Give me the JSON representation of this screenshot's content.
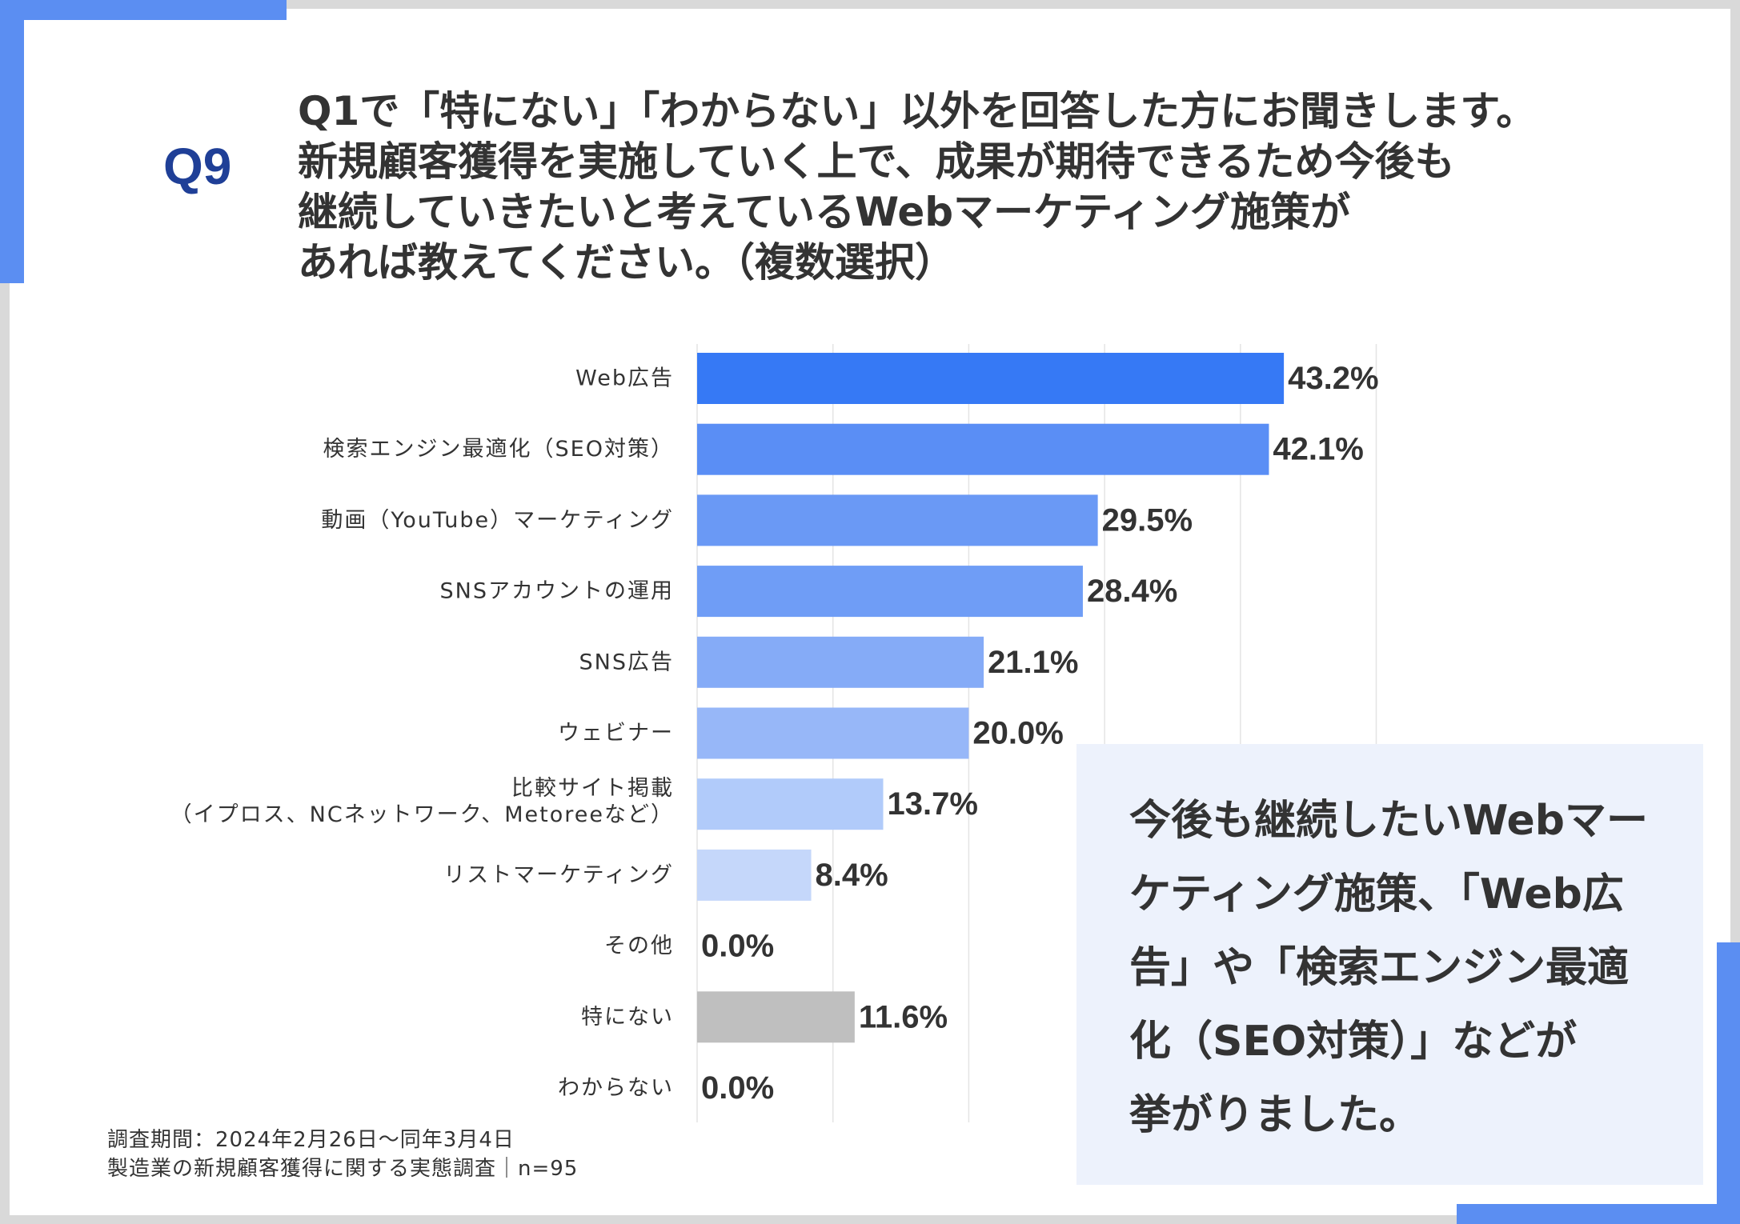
{
  "question": {
    "number": "Q9",
    "lines": [
      "Q1で「特にない」「わからない」以外を回答した方にお聞きします。",
      "新規顧客獲得を実施していく上で、成果が期待できるため今後も",
      "継続していきたいと考えているWebマーケティング施策が",
      "あれば教えてください。（複数選択）"
    ]
  },
  "chart_data": {
    "type": "bar",
    "orientation": "horizontal",
    "categories": [
      "Web広告",
      "検索エンジン最適化（SEO対策）",
      "動画（YouTube）マーケティング",
      "SNSアカウントの運用",
      "SNS広告",
      "ウェビナー",
      "比較サイト掲載\n（イプロス、NCネットワーク、Metoreeなど）",
      "リストマーケティング",
      "その他",
      "特にない",
      "わからない"
    ],
    "values": [
      43.2,
      42.1,
      29.5,
      28.4,
      21.1,
      20.0,
      13.7,
      8.4,
      0.0,
      11.6,
      0.0
    ],
    "value_labels": [
      "43.2%",
      "42.1%",
      "29.5%",
      "28.4%",
      "21.1%",
      "20.0%",
      "13.7%",
      "8.4%",
      "0.0%",
      "11.6%",
      "0.0%"
    ],
    "colors": [
      "#3679f5",
      "#5a8ef5",
      "#6a99f5",
      "#6f9df6",
      "#85abf7",
      "#97b7f8",
      "#b1cbfa",
      "#c5d7fa",
      "#d5e2fb",
      "#bfbfbf",
      "#bfbfbf"
    ],
    "xlim": [
      0,
      50
    ],
    "grid": true
  },
  "summary": {
    "lines": [
      "今後も継続したいWebマー",
      "ケティング施策、「Web広",
      "告」や「検索エンジン最適",
      "化（SEO対策）」などが",
      "挙がりました。"
    ]
  },
  "footnote": {
    "lines": [
      "調査期間：2024年2月26日〜同年3月4日",
      "製造業の新規顧客獲得に関する実態調査｜n=95"
    ]
  },
  "theme": {
    "accent": "#5b8ef2",
    "question_number_color": "#1f3f97",
    "summary_background": "#edf2fc",
    "text": "#333333",
    "gridline": "#e4e4e4"
  }
}
